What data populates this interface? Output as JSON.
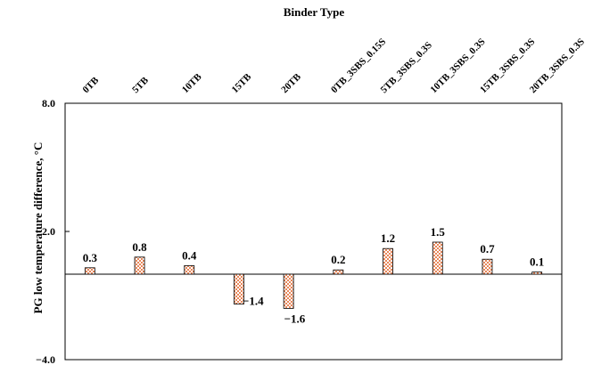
{
  "chart_data": {
    "type": "bar",
    "title": "Binder Type",
    "xlabel": "",
    "ylabel": "PG low temperature difference, °C",
    "categories": [
      "0TB",
      "5TB",
      "10TB",
      "15TB",
      "20TB",
      "0TB_3SBS_0.15S",
      "5TB_3SBS_0.3S",
      "10TB_3SBS_0.3S",
      "15TB_3SBS_0.3S",
      "20TB_3SBS_0.3S"
    ],
    "values": [
      0.3,
      0.8,
      0.4,
      -1.4,
      -1.6,
      0.2,
      1.2,
      1.5,
      0.7,
      0.1
    ],
    "data_labels": [
      "0.3",
      "0.8",
      "0.4",
      "−1.4",
      "−1.6",
      "0.2",
      "1.2",
      "1.5",
      "0.7",
      "0.1"
    ],
    "ylim": [
      -4.0,
      8.0
    ],
    "yticks": [
      "8.0",
      "2.0",
      "−4.0"
    ],
    "grid": false,
    "legend": "none",
    "bar_fill": "#f4b183",
    "bar_pattern": "checkered",
    "category_axis_position": "top"
  }
}
